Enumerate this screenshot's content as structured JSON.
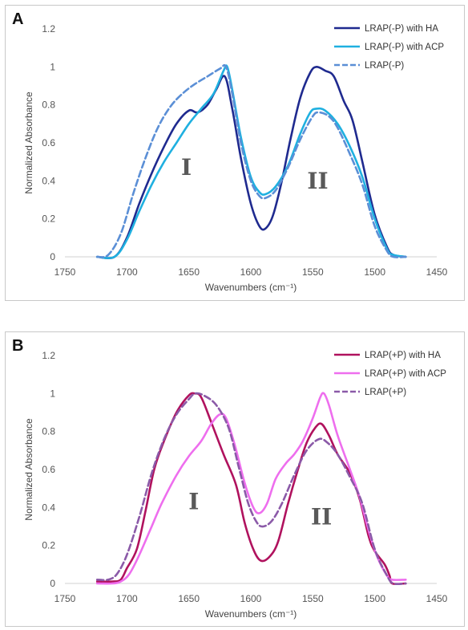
{
  "chart_data": [
    {
      "panel": "A",
      "type": "line",
      "xlabel": "Wavenumbers (cm⁻¹)",
      "ylabel": "Normalized Absorbance",
      "xlim": [
        1750,
        1450
      ],
      "ylim": [
        0,
        1.2
      ],
      "x_ticks": [
        1750,
        1700,
        1650,
        1600,
        1550,
        1500,
        1450
      ],
      "y_ticks": [
        "0",
        "0.2",
        "0.4",
        "0.6",
        "0.8",
        "1",
        "1.2"
      ],
      "legend": "top-right",
      "grid": false,
      "annotations": [
        {
          "text": "I",
          "x": 1652,
          "y": 0.43
        },
        {
          "text": "II",
          "x": 1546,
          "y": 0.36
        }
      ],
      "series": [
        {
          "name": "LRAP(-P) with HA",
          "color": "#1f2a8f",
          "dash": false,
          "points": [
            [
              1724,
              0
            ],
            [
              1710,
              0
            ],
            [
              1700,
              0.1
            ],
            [
              1690,
              0.28
            ],
            [
              1680,
              0.44
            ],
            [
              1670,
              0.58
            ],
            [
              1660,
              0.7
            ],
            [
              1650,
              0.77
            ],
            [
              1643,
              0.76
            ],
            [
              1635,
              0.8
            ],
            [
              1628,
              0.88
            ],
            [
              1621,
              0.95
            ],
            [
              1615,
              0.78
            ],
            [
              1608,
              0.52
            ],
            [
              1600,
              0.28
            ],
            [
              1593,
              0.16
            ],
            [
              1588,
              0.15
            ],
            [
              1582,
              0.22
            ],
            [
              1575,
              0.4
            ],
            [
              1568,
              0.62
            ],
            [
              1560,
              0.84
            ],
            [
              1552,
              0.97
            ],
            [
              1547,
              1.0
            ],
            [
              1540,
              0.98
            ],
            [
              1533,
              0.95
            ],
            [
              1525,
              0.82
            ],
            [
              1518,
              0.72
            ],
            [
              1510,
              0.5
            ],
            [
              1500,
              0.22
            ],
            [
              1490,
              0.05
            ],
            [
              1485,
              0.01
            ],
            [
              1475,
              0
            ]
          ]
        },
        {
          "name": "LRAP(-P) with ACP",
          "color": "#1fb0e0",
          "dash": false,
          "points": [
            [
              1724,
              0
            ],
            [
              1710,
              0
            ],
            [
              1700,
              0.09
            ],
            [
              1690,
              0.24
            ],
            [
              1680,
              0.38
            ],
            [
              1670,
              0.5
            ],
            [
              1660,
              0.6
            ],
            [
              1650,
              0.7
            ],
            [
              1640,
              0.78
            ],
            [
              1630,
              0.86
            ],
            [
              1622,
              0.98
            ],
            [
              1619,
              1.0
            ],
            [
              1615,
              0.88
            ],
            [
              1608,
              0.63
            ],
            [
              1600,
              0.42
            ],
            [
              1593,
              0.34
            ],
            [
              1588,
              0.33
            ],
            [
              1580,
              0.37
            ],
            [
              1570,
              0.48
            ],
            [
              1560,
              0.65
            ],
            [
              1552,
              0.76
            ],
            [
              1547,
              0.78
            ],
            [
              1540,
              0.77
            ],
            [
              1530,
              0.7
            ],
            [
              1520,
              0.58
            ],
            [
              1510,
              0.42
            ],
            [
              1500,
              0.2
            ],
            [
              1490,
              0.04
            ],
            [
              1485,
              0.01
            ],
            [
              1475,
              0
            ]
          ]
        },
        {
          "name": "LRAP(-P)",
          "color": "#5b8fd6",
          "dash": true,
          "points": [
            [
              1724,
              0
            ],
            [
              1715,
              0.01
            ],
            [
              1705,
              0.12
            ],
            [
              1695,
              0.33
            ],
            [
              1685,
              0.52
            ],
            [
              1675,
              0.68
            ],
            [
              1665,
              0.79
            ],
            [
              1655,
              0.86
            ],
            [
              1645,
              0.91
            ],
            [
              1635,
              0.95
            ],
            [
              1625,
              0.99
            ],
            [
              1620,
              1.0
            ],
            [
              1615,
              0.86
            ],
            [
              1608,
              0.6
            ],
            [
              1600,
              0.4
            ],
            [
              1593,
              0.32
            ],
            [
              1588,
              0.31
            ],
            [
              1580,
              0.35
            ],
            [
              1570,
              0.47
            ],
            [
              1560,
              0.62
            ],
            [
              1550,
              0.74
            ],
            [
              1545,
              0.76
            ],
            [
              1537,
              0.74
            ],
            [
              1530,
              0.68
            ],
            [
              1520,
              0.54
            ],
            [
              1510,
              0.38
            ],
            [
              1500,
              0.16
            ],
            [
              1490,
              0.03
            ],
            [
              1485,
              0
            ],
            [
              1475,
              0
            ]
          ]
        }
      ]
    },
    {
      "panel": "B",
      "type": "line",
      "xlabel": "Wavenumbers (cm⁻¹)",
      "ylabel": "Normalized Absorbance",
      "xlim": [
        1750,
        1450
      ],
      "ylim": [
        0,
        1.2
      ],
      "x_ticks": [
        1750,
        1700,
        1650,
        1600,
        1550,
        1500,
        1450
      ],
      "y_ticks": [
        "0",
        "0.2",
        "0.4",
        "0.6",
        "0.8",
        "1",
        "1.2"
      ],
      "legend": "top-right",
      "grid": false,
      "annotations": [
        {
          "text": "I",
          "x": 1646,
          "y": 0.39
        },
        {
          "text": "II",
          "x": 1543,
          "y": 0.31
        }
      ],
      "series": [
        {
          "name": "LRAP(+P) with HA",
          "color": "#b0125e",
          "dash": false,
          "points": [
            [
              1724,
              0.01
            ],
            [
              1712,
              0.01
            ],
            [
              1705,
              0.02
            ],
            [
              1700,
              0.08
            ],
            [
              1692,
              0.18
            ],
            [
              1685,
              0.38
            ],
            [
              1678,
              0.6
            ],
            [
              1670,
              0.75
            ],
            [
              1660,
              0.9
            ],
            [
              1650,
              0.99
            ],
            [
              1645,
              1.0
            ],
            [
              1640,
              0.98
            ],
            [
              1632,
              0.85
            ],
            [
              1622,
              0.68
            ],
            [
              1612,
              0.52
            ],
            [
              1605,
              0.32
            ],
            [
              1598,
              0.18
            ],
            [
              1592,
              0.12
            ],
            [
              1585,
              0.14
            ],
            [
              1578,
              0.22
            ],
            [
              1570,
              0.42
            ],
            [
              1562,
              0.6
            ],
            [
              1555,
              0.74
            ],
            [
              1548,
              0.82
            ],
            [
              1543,
              0.84
            ],
            [
              1537,
              0.78
            ],
            [
              1530,
              0.68
            ],
            [
              1520,
              0.58
            ],
            [
              1512,
              0.44
            ],
            [
              1505,
              0.25
            ],
            [
              1500,
              0.17
            ],
            [
              1492,
              0.1
            ],
            [
              1488,
              0.04
            ],
            [
              1486,
              0
            ],
            [
              1475,
              0
            ]
          ]
        },
        {
          "name": "LRAP(+P) with ACP",
          "color": "#ee6eee",
          "dash": false,
          "points": [
            [
              1724,
              0
            ],
            [
              1712,
              0
            ],
            [
              1705,
              0.01
            ],
            [
              1698,
              0.05
            ],
            [
              1690,
              0.15
            ],
            [
              1680,
              0.3
            ],
            [
              1672,
              0.42
            ],
            [
              1660,
              0.57
            ],
            [
              1650,
              0.67
            ],
            [
              1640,
              0.75
            ],
            [
              1632,
              0.84
            ],
            [
              1625,
              0.89
            ],
            [
              1620,
              0.87
            ],
            [
              1613,
              0.73
            ],
            [
              1605,
              0.53
            ],
            [
              1598,
              0.4
            ],
            [
              1593,
              0.37
            ],
            [
              1587,
              0.42
            ],
            [
              1580,
              0.55
            ],
            [
              1572,
              0.63
            ],
            [
              1565,
              0.68
            ],
            [
              1558,
              0.75
            ],
            [
              1550,
              0.87
            ],
            [
              1544,
              0.98
            ],
            [
              1541,
              1.0
            ],
            [
              1537,
              0.94
            ],
            [
              1530,
              0.78
            ],
            [
              1520,
              0.6
            ],
            [
              1512,
              0.45
            ],
            [
              1505,
              0.28
            ],
            [
              1498,
              0.14
            ],
            [
              1490,
              0.04
            ],
            [
              1486,
              0.02
            ],
            [
              1475,
              0.02
            ]
          ]
        },
        {
          "name": "LRAP(+P)",
          "color": "#8b5aa8",
          "dash": true,
          "points": [
            [
              1724,
              0.02
            ],
            [
              1715,
              0.02
            ],
            [
              1708,
              0.05
            ],
            [
              1700,
              0.15
            ],
            [
              1690,
              0.35
            ],
            [
              1680,
              0.58
            ],
            [
              1670,
              0.76
            ],
            [
              1660,
              0.89
            ],
            [
              1650,
              0.97
            ],
            [
              1645,
              1.0
            ],
            [
              1638,
              0.99
            ],
            [
              1628,
              0.94
            ],
            [
              1618,
              0.82
            ],
            [
              1610,
              0.62
            ],
            [
              1602,
              0.42
            ],
            [
              1595,
              0.32
            ],
            [
              1590,
              0.3
            ],
            [
              1583,
              0.33
            ],
            [
              1575,
              0.42
            ],
            [
              1565,
              0.57
            ],
            [
              1555,
              0.7
            ],
            [
              1545,
              0.76
            ],
            [
              1538,
              0.74
            ],
            [
              1530,
              0.68
            ],
            [
              1520,
              0.56
            ],
            [
              1510,
              0.42
            ],
            [
              1500,
              0.18
            ],
            [
              1490,
              0.04
            ],
            [
              1485,
              0
            ],
            [
              1475,
              0
            ]
          ]
        }
      ]
    }
  ],
  "panels": {
    "A": {
      "letter": "A"
    },
    "B": {
      "letter": "B"
    }
  }
}
